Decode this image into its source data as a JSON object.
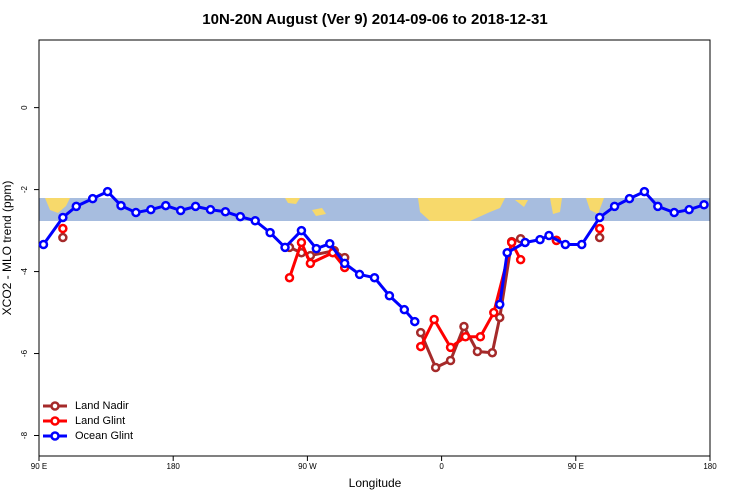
{
  "chart_data": {
    "type": "line",
    "title": "10N-20N August (Ver 9)   2014-09-06 to 2018-12-31",
    "x_label": "Longitude",
    "y_label": "XCO2 - MLO trend (ppm)",
    "xlim": [
      90,
      540
    ],
    "xticks": [
      {
        "value": 90,
        "label": "90 E"
      },
      {
        "value": 180,
        "label": "180"
      },
      {
        "value": 270,
        "label": "90 W"
      },
      {
        "value": 360,
        "label": "0"
      },
      {
        "value": 450,
        "label": "90 E"
      },
      {
        "value": 540,
        "label": "180"
      }
    ],
    "ylim": [
      -8.5,
      1.65
    ],
    "yticks": [
      -8,
      -6,
      -4,
      -2,
      0
    ],
    "legend": "bottom-left",
    "series": [
      {
        "name": "Land Nadir",
        "color": "#a52a2a",
        "x": [
          106,
          null,
          258,
          266,
          272,
          288,
          295,
          null,
          346,
          356,
          366,
          375,
          384,
          394,
          399,
          407,
          413,
          null,
          437,
          null,
          466
        ],
        "values": [
          -3.17,
          null,
          -3.41,
          -3.54,
          -3.61,
          -3.49,
          -3.66,
          null,
          -5.49,
          -6.34,
          -6.17,
          -5.34,
          -5.95,
          -5.98,
          -5.12,
          -3.27,
          -3.2,
          null,
          -3.24,
          null,
          -3.17
        ]
      },
      {
        "name": "Land Glint",
        "color": "#ff0000",
        "x": [
          106,
          null,
          258,
          266,
          272,
          287,
          295,
          null,
          346,
          355,
          366,
          376,
          386,
          395,
          407,
          413,
          null,
          437,
          null,
          466
        ],
        "values": [
          -2.95,
          null,
          -4.15,
          -3.29,
          -3.8,
          -3.54,
          -3.9,
          null,
          -5.83,
          -5.17,
          -5.85,
          -5.59,
          -5.59,
          -5.0,
          -3.29,
          -3.71,
          null,
          -3.24,
          null,
          -2.95
        ]
      },
      {
        "name": "Ocean Glint",
        "color": "#0000ff",
        "x": [
          93,
          106,
          115,
          126,
          136,
          145,
          155,
          165,
          175,
          185,
          195,
          205,
          215,
          225,
          235,
          245,
          255,
          266,
          276,
          285,
          295,
          305,
          315,
          325,
          335,
          342,
          null,
          399,
          404,
          416,
          426,
          432,
          443,
          454,
          466,
          476,
          486,
          496,
          505,
          516,
          526,
          536
        ],
        "values": [
          -3.34,
          -2.68,
          -2.41,
          -2.22,
          -2.05,
          -2.39,
          -2.56,
          -2.49,
          -2.39,
          -2.51,
          -2.41,
          -2.49,
          -2.54,
          -2.66,
          -2.76,
          -3.05,
          -3.41,
          -3.0,
          -3.44,
          -3.32,
          -3.8,
          -4.07,
          -4.15,
          -4.59,
          -4.93,
          -5.22,
          null,
          -4.8,
          -3.54,
          -3.29,
          -3.22,
          -3.12,
          -3.34,
          -3.34,
          -2.68,
          -2.41,
          -2.22,
          -2.05,
          -2.41,
          -2.56,
          -2.49,
          -2.37
        ]
      }
    ]
  }
}
